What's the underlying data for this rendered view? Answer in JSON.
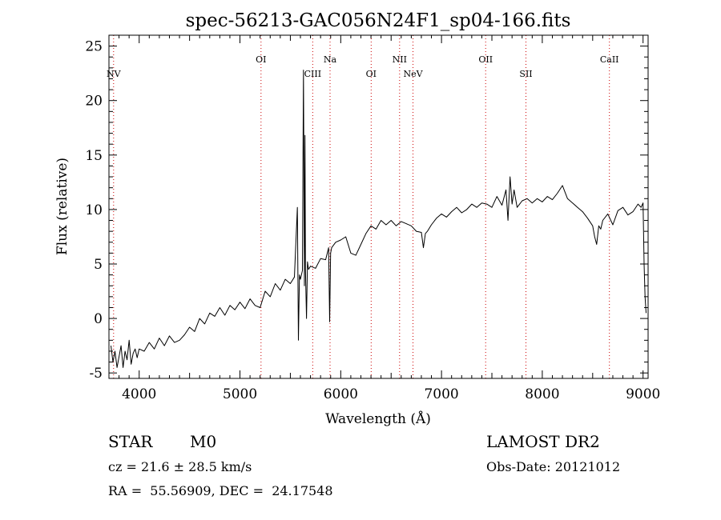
{
  "chart_data": {
    "type": "line",
    "title": "spec-56213-GAC056N24F1_sp04-166.fits",
    "xlabel": "Wavelength (Å)",
    "ylabel": "Flux (relative)",
    "xlim": [
      3700,
      9050
    ],
    "ylim": [
      -5.5,
      26
    ],
    "xticks": [
      4000,
      5000,
      6000,
      7000,
      8000,
      9000
    ],
    "yticks": [
      -5,
      0,
      5,
      10,
      15,
      20,
      25
    ],
    "grid": false,
    "line_color": "#000000",
    "marker_color": "#cc0000",
    "lines": [
      {
        "label": "NV",
        "wavelength": 3746
      },
      {
        "label": "OI",
        "wavelength": 5209
      },
      {
        "label": "CIII",
        "wavelength": 5722
      },
      {
        "label": "Na",
        "wavelength": 5894
      },
      {
        "label": "OI",
        "wavelength": 6302
      },
      {
        "label": "NII",
        "wavelength": 6584
      },
      {
        "label": "NeV",
        "wavelength": 6717
      },
      {
        "label": "OII",
        "wavelength": 7438
      },
      {
        "label": "SII",
        "wavelength": 7838
      },
      {
        "label": "CaII",
        "wavelength": 8666
      }
    ],
    "series": [
      {
        "x": [
          3720,
          3740,
          3760,
          3780,
          3800,
          3820,
          3840,
          3860,
          3880,
          3900,
          3920,
          3940,
          3960,
          3980,
          4000,
          4050,
          4100,
          4150,
          4200,
          4250,
          4300,
          4350,
          4400,
          4450,
          4500,
          4550,
          4600,
          4650,
          4700,
          4750,
          4800,
          4850,
          4900,
          4950,
          5000,
          5050,
          5100,
          5150,
          5200,
          5250,
          5300,
          5350,
          5400,
          5450,
          5500,
          5540,
          5570,
          5580,
          5590,
          5600,
          5620,
          5630,
          5640,
          5645,
          5650,
          5660,
          5670,
          5680,
          5700,
          5750,
          5800,
          5850,
          5880,
          5890,
          5900,
          5910,
          5950,
          6000,
          6050,
          6100,
          6150,
          6200,
          6250,
          6300,
          6350,
          6400,
          6450,
          6500,
          6550,
          6600,
          6650,
          6700,
          6750,
          6800,
          6820,
          6840,
          6860,
          6900,
          6950,
          7000,
          7050,
          7100,
          7150,
          7200,
          7250,
          7300,
          7350,
          7400,
          7450,
          7500,
          7550,
          7600,
          7640,
          7660,
          7680,
          7700,
          7720,
          7750,
          7800,
          7850,
          7900,
          7950,
          8000,
          8050,
          8100,
          8150,
          8200,
          8250,
          8300,
          8350,
          8400,
          8450,
          8500,
          8520,
          8540,
          8560,
          8580,
          8600,
          8650,
          8700,
          8750,
          8800,
          8850,
          8900,
          8950,
          8980,
          9000,
          9010,
          9020,
          9030
        ],
        "y": [
          -2.5,
          -4.0,
          -3.0,
          -4.5,
          -3.5,
          -2.5,
          -4.5,
          -3.0,
          -3.8,
          -2.0,
          -4.2,
          -3.2,
          -2.8,
          -3.6,
          -2.8,
          -3.0,
          -2.2,
          -2.8,
          -1.8,
          -2.5,
          -1.6,
          -2.2,
          -2.0,
          -1.5,
          -0.8,
          -1.2,
          0.0,
          -0.5,
          0.5,
          0.2,
          1.0,
          0.3,
          1.2,
          0.8,
          1.5,
          0.9,
          1.8,
          1.2,
          1.0,
          2.5,
          2.0,
          3.2,
          2.6,
          3.6,
          3.2,
          3.8,
          10.2,
          -2.0,
          4.0,
          3.6,
          4.4,
          22.8,
          3.0,
          16.8,
          4.5,
          0.0,
          5.2,
          4.5,
          4.8,
          4.6,
          5.5,
          5.4,
          6.5,
          -0.3,
          6.0,
          6.5,
          7.0,
          7.2,
          7.5,
          6.0,
          5.8,
          6.8,
          7.8,
          8.5,
          8.2,
          9.0,
          8.6,
          9.0,
          8.5,
          8.9,
          8.7,
          8.5,
          8.0,
          7.9,
          6.5,
          7.8,
          8.0,
          8.6,
          9.2,
          9.6,
          9.3,
          9.8,
          10.2,
          9.7,
          10.0,
          10.5,
          10.2,
          10.6,
          10.5,
          10.2,
          11.2,
          10.4,
          11.8,
          9.0,
          13.0,
          10.5,
          11.8,
          10.2,
          10.8,
          11.0,
          10.6,
          11.0,
          10.7,
          11.2,
          10.9,
          11.5,
          12.2,
          11.0,
          10.6,
          10.2,
          9.8,
          9.2,
          8.5,
          7.5,
          6.8,
          8.5,
          8.2,
          9.0,
          9.6,
          8.6,
          9.9,
          10.2,
          9.5,
          9.8,
          10.5,
          10.2,
          10.6,
          5.0,
          2.0,
          0.5
        ]
      }
    ]
  },
  "info": {
    "object_class": "STAR",
    "subclass": "M0",
    "survey": "LAMOST DR2",
    "cz_text": "cz = 21.6 ± 28.5 km/s",
    "obs_date_text": "Obs-Date: 20121012",
    "coords_text": "RA =  55.56909, DEC =  24.17548"
  }
}
